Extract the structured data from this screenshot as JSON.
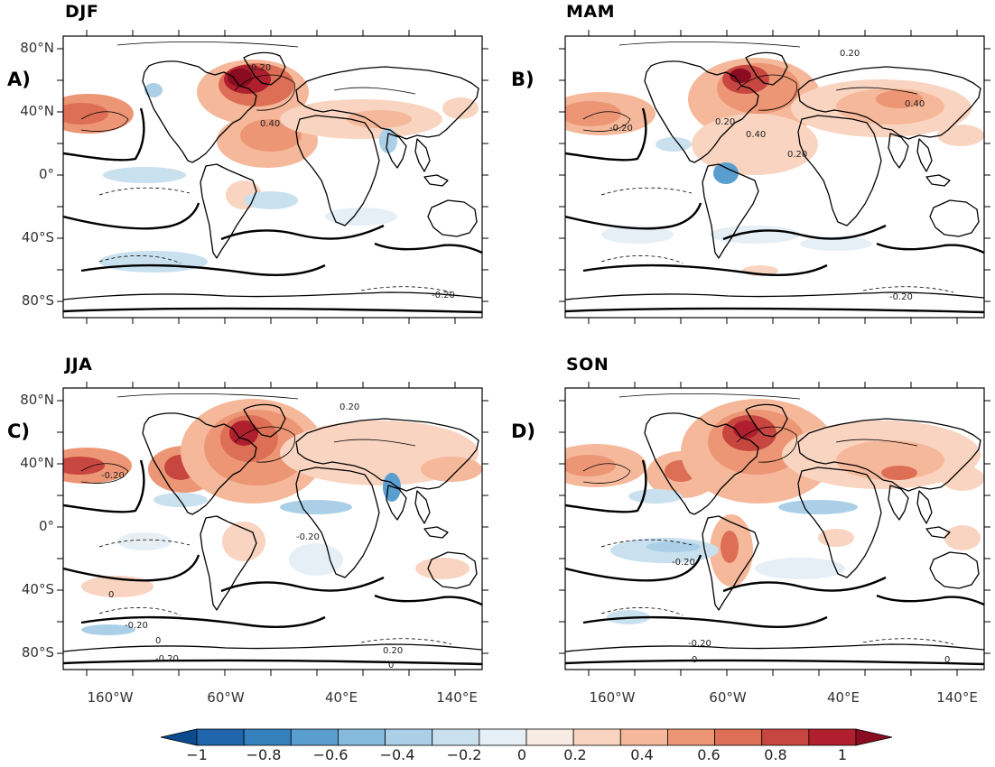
{
  "panels": [
    {
      "season": "DJF",
      "label": "A)",
      "contour_labels": [
        "0.40",
        "0.20",
        "-0.20"
      ]
    },
    {
      "season": "MAM",
      "label": "B)",
      "contour_labels": [
        "-0.20",
        "0.20",
        "0.40",
        "0.20",
        "0.40",
        "0.20",
        "-0.20"
      ]
    },
    {
      "season": "JJA",
      "label": "C)",
      "contour_labels": [
        "-0.20",
        "-0.20",
        "0",
        "-0.20",
        "0.20",
        "0",
        "0.20",
        "0",
        "-0.20"
      ]
    },
    {
      "season": "SON",
      "label": "D)",
      "contour_labels": [
        "-0.20",
        "-0.20",
        "0",
        "0"
      ]
    }
  ],
  "lat_ticks": [
    "80°N",
    "40°N",
    "0°",
    "40°S",
    "80°S"
  ],
  "lon_ticks": [
    "160°W",
    "60°W",
    "40°E",
    "140°E"
  ],
  "colorbar": {
    "tick_labels": [
      "−1",
      "−0.8",
      "−0.6",
      "−0.4",
      "−0.2",
      "0",
      "0.2",
      "0.4",
      "0.6",
      "0.8",
      "1"
    ],
    "colors": [
      "#0b4a8f",
      "#1f66ad",
      "#3581be",
      "#5a9ecf",
      "#86badd",
      "#aacfe6",
      "#c9e0ef",
      "#e6eff6",
      "#f7ebe4",
      "#f9d4c0",
      "#f5b89a",
      "#ec9675",
      "#dc6f55",
      "#c84640",
      "#b01f2e",
      "#8a0c20"
    ]
  }
}
